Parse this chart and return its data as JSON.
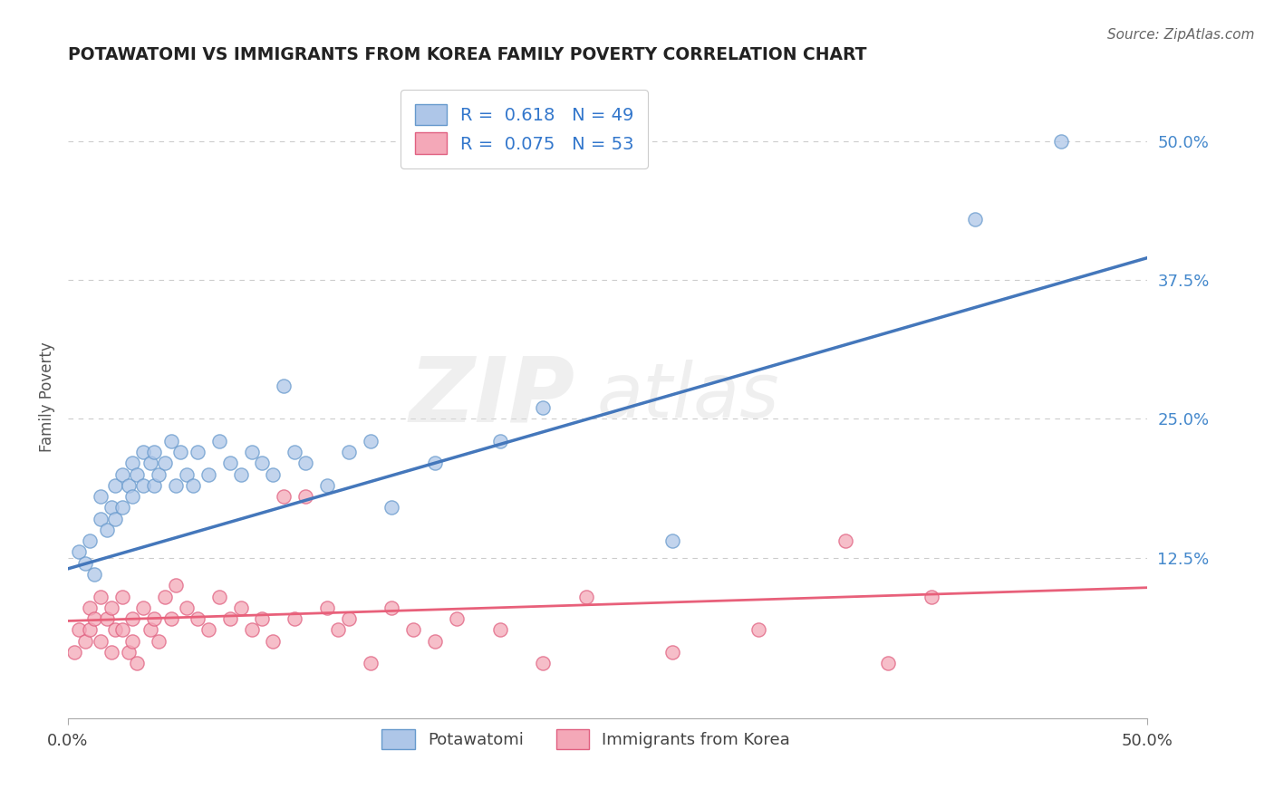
{
  "title": "POTAWATOMI VS IMMIGRANTS FROM KOREA FAMILY POVERTY CORRELATION CHART",
  "source": "Source: ZipAtlas.com",
  "ylabel": "Family Poverty",
  "xlim": [
    0.0,
    0.5
  ],
  "ylim": [
    -0.02,
    0.56
  ],
  "xtick_vals": [
    0.0,
    0.5
  ],
  "xtick_labels": [
    "0.0%",
    "50.0%"
  ],
  "ytick_vals": [
    0.125,
    0.25,
    0.375,
    0.5
  ],
  "ytick_labels": [
    "12.5%",
    "25.0%",
    "37.5%",
    "50.0%"
  ],
  "r1": 0.618,
  "n1": 49,
  "r2": 0.075,
  "n2": 53,
  "color_blue": "#AEC6E8",
  "color_pink": "#F4A8B8",
  "edge_blue": "#6699CC",
  "edge_pink": "#E06080",
  "line_blue": "#4477BB",
  "line_pink": "#E8607A",
  "legend_label1": "Potawatomi",
  "legend_label2": "Immigrants from Korea",
  "blue_line_x": [
    0.0,
    0.5
  ],
  "blue_line_y": [
    0.115,
    0.395
  ],
  "pink_line_x": [
    0.0,
    0.5
  ],
  "pink_line_y": [
    0.068,
    0.098
  ],
  "potawatomi_x": [
    0.005,
    0.008,
    0.01,
    0.012,
    0.015,
    0.015,
    0.018,
    0.02,
    0.022,
    0.022,
    0.025,
    0.025,
    0.028,
    0.03,
    0.03,
    0.032,
    0.035,
    0.035,
    0.038,
    0.04,
    0.04,
    0.042,
    0.045,
    0.048,
    0.05,
    0.052,
    0.055,
    0.058,
    0.06,
    0.065,
    0.07,
    0.075,
    0.08,
    0.085,
    0.09,
    0.095,
    0.1,
    0.105,
    0.11,
    0.12,
    0.13,
    0.14,
    0.15,
    0.17,
    0.2,
    0.22,
    0.28,
    0.42,
    0.46
  ],
  "potawatomi_y": [
    0.13,
    0.12,
    0.14,
    0.11,
    0.16,
    0.18,
    0.15,
    0.17,
    0.19,
    0.16,
    0.2,
    0.17,
    0.19,
    0.21,
    0.18,
    0.2,
    0.22,
    0.19,
    0.21,
    0.19,
    0.22,
    0.2,
    0.21,
    0.23,
    0.19,
    0.22,
    0.2,
    0.19,
    0.22,
    0.2,
    0.23,
    0.21,
    0.2,
    0.22,
    0.21,
    0.2,
    0.28,
    0.22,
    0.21,
    0.19,
    0.22,
    0.23,
    0.17,
    0.21,
    0.23,
    0.26,
    0.14,
    0.43,
    0.5
  ],
  "korea_x": [
    0.003,
    0.005,
    0.008,
    0.01,
    0.01,
    0.012,
    0.015,
    0.015,
    0.018,
    0.02,
    0.02,
    0.022,
    0.025,
    0.025,
    0.028,
    0.03,
    0.03,
    0.032,
    0.035,
    0.038,
    0.04,
    0.042,
    0.045,
    0.048,
    0.05,
    0.055,
    0.06,
    0.065,
    0.07,
    0.075,
    0.08,
    0.085,
    0.09,
    0.095,
    0.1,
    0.105,
    0.11,
    0.12,
    0.125,
    0.13,
    0.14,
    0.15,
    0.16,
    0.17,
    0.18,
    0.2,
    0.22,
    0.24,
    0.28,
    0.32,
    0.36,
    0.38,
    0.4
  ],
  "korea_y": [
    0.04,
    0.06,
    0.05,
    0.08,
    0.06,
    0.07,
    0.09,
    0.05,
    0.07,
    0.08,
    0.04,
    0.06,
    0.09,
    0.06,
    0.04,
    0.07,
    0.05,
    0.03,
    0.08,
    0.06,
    0.07,
    0.05,
    0.09,
    0.07,
    0.1,
    0.08,
    0.07,
    0.06,
    0.09,
    0.07,
    0.08,
    0.06,
    0.07,
    0.05,
    0.18,
    0.07,
    0.18,
    0.08,
    0.06,
    0.07,
    0.03,
    0.08,
    0.06,
    0.05,
    0.07,
    0.06,
    0.03,
    0.09,
    0.04,
    0.06,
    0.14,
    0.03,
    0.09
  ]
}
